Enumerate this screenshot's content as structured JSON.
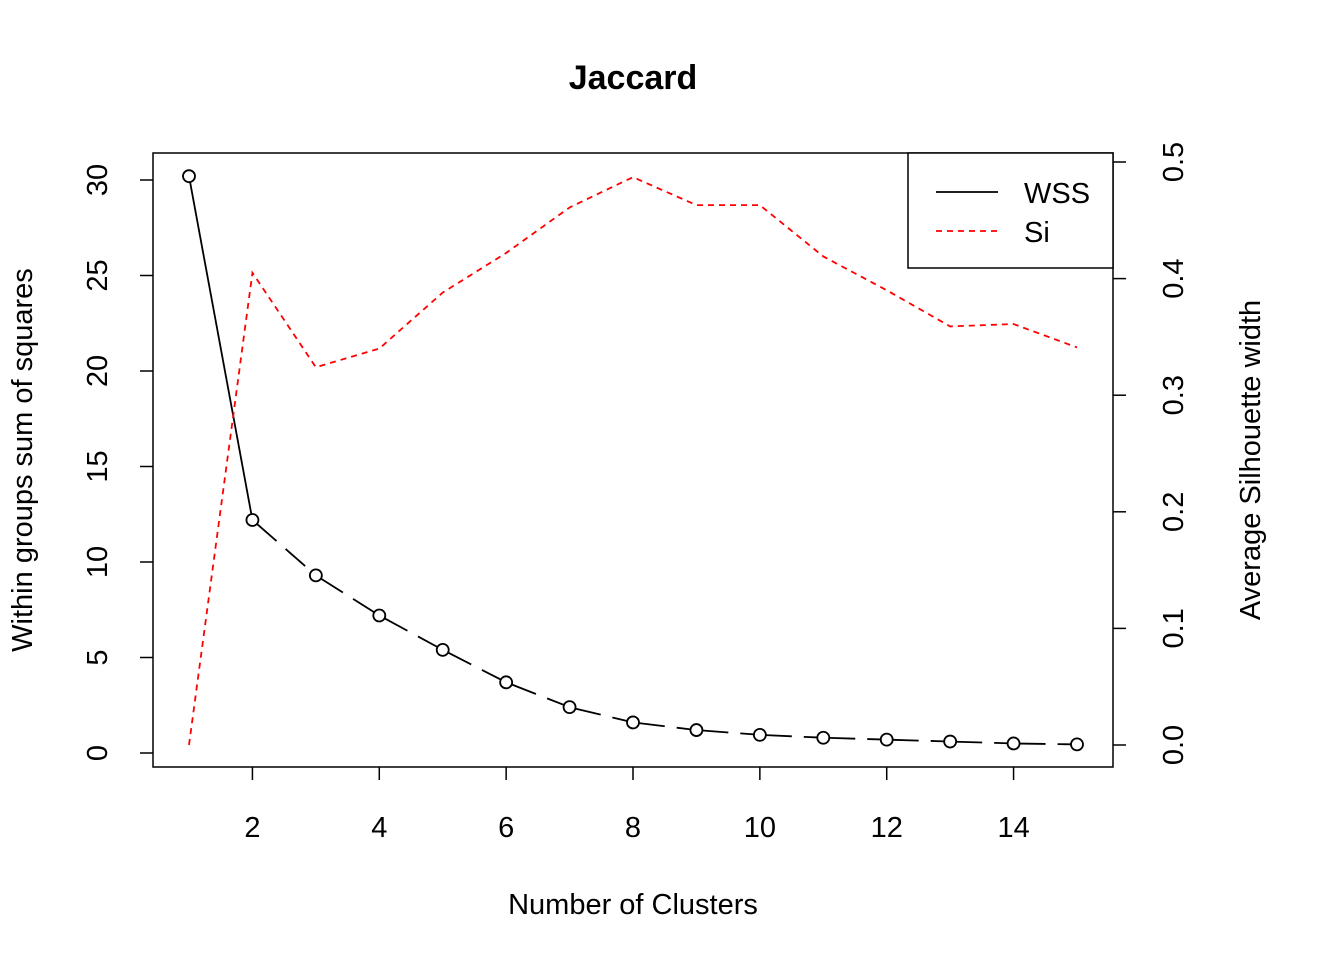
{
  "chart_data": {
    "type": "line",
    "title": "Jaccard",
    "xlabel": "Number of Clusters",
    "ylabel_left": "Within groups sum of squares",
    "ylabel_right": "Average Silhouette width",
    "xlim": [
      1,
      15
    ],
    "ylim_left": [
      0,
      30
    ],
    "ylim_right": [
      0,
      0.5
    ],
    "x_ticks": [
      2,
      4,
      6,
      8,
      10,
      12,
      14
    ],
    "y_left_ticks": [
      0,
      5,
      10,
      15,
      20,
      25,
      30
    ],
    "y_right_ticks": [
      "0.0",
      "0.1",
      "0.2",
      "0.3",
      "0.4",
      "0.5"
    ],
    "x": [
      1,
      2,
      3,
      4,
      5,
      6,
      7,
      8,
      9,
      10,
      11,
      12,
      13,
      14,
      15
    ],
    "grid": false,
    "legend_position": "top-right",
    "series": [
      {
        "name": "WSS",
        "axis": "left",
        "color": "#000000",
        "line_style": "solid-then-dashed",
        "markers": "open-circle",
        "values": [
          30.2,
          12.2,
          9.3,
          7.2,
          5.4,
          3.7,
          2.4,
          1.6,
          1.2,
          0.95,
          0.8,
          0.7,
          0.6,
          0.5,
          0.45
        ]
      },
      {
        "name": "Si",
        "axis": "right",
        "color": "#ff0000",
        "line_style": "dashed",
        "markers": "none",
        "values": [
          0.0,
          0.405,
          0.324,
          0.34,
          0.388,
          0.422,
          0.461,
          0.487,
          0.463,
          0.463,
          0.419,
          0.39,
          0.359,
          0.361,
          0.341
        ]
      }
    ]
  }
}
